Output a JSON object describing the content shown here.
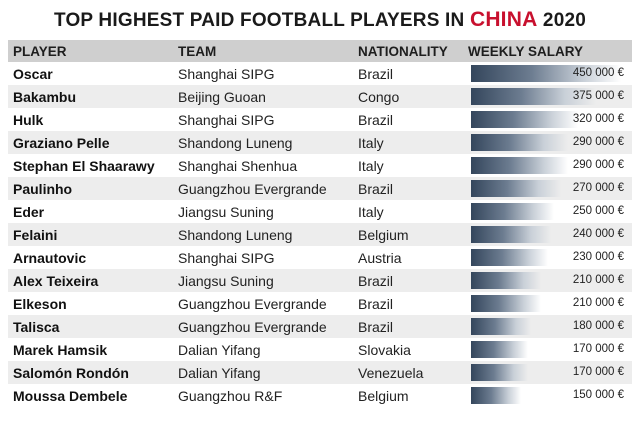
{
  "title": {
    "prefix": "TOP HIGHEST PAID FOOTBALL PLAYERS IN ",
    "accent": "CHINA",
    "suffix": " 2020",
    "accent_color": "#c8102e"
  },
  "headers": {
    "player": "PLAYER",
    "team": "TEAM",
    "nationality": "NATIONALITY",
    "salary": "WEEKLY SALARY"
  },
  "chart_data": {
    "type": "table",
    "title": "TOP HIGHEST PAID FOOTBALL PLAYERS IN CHINA 2020",
    "columns": [
      "PLAYER",
      "TEAM",
      "NATIONALITY",
      "WEEKLY SALARY"
    ],
    "max_value": 450000,
    "rows": [
      {
        "player": "Oscar",
        "team": "Shanghai SIPG",
        "nationality": "Brazil",
        "salary": 450000,
        "salary_label": "450 000 €"
      },
      {
        "player": "Bakambu",
        "team": "Beijing Guoan",
        "nationality": "Congo",
        "salary": 375000,
        "salary_label": "375 000 €"
      },
      {
        "player": "Hulk",
        "team": "Shanghai SIPG",
        "nationality": "Brazil",
        "salary": 320000,
        "salary_label": "320 000 €"
      },
      {
        "player": "Graziano Pelle",
        "team": "Shandong Luneng",
        "nationality": "Italy",
        "salary": 290000,
        "salary_label": "290 000 €"
      },
      {
        "player": "Stephan El Shaarawy",
        "team": "Shanghai Shenhua",
        "nationality": "Italy",
        "salary": 290000,
        "salary_label": "290 000 €"
      },
      {
        "player": "Paulinho",
        "team": "Guangzhou Evergrande",
        "nationality": "Brazil",
        "salary": 270000,
        "salary_label": "270 000 €"
      },
      {
        "player": "Eder",
        "team": "Jiangsu Suning",
        "nationality": "Italy",
        "salary": 250000,
        "salary_label": "250 000 €"
      },
      {
        "player": "Felaini",
        "team": "Shandong Luneng",
        "nationality": "Belgium",
        "salary": 240000,
        "salary_label": "240 000 €"
      },
      {
        "player": "Arnautovic",
        "team": "Shanghai SIPG",
        "nationality": "Austria",
        "salary": 230000,
        "salary_label": "230 000 €"
      },
      {
        "player": "Alex Teixeira",
        "team": "Jiangsu Suning",
        "nationality": "Brazil",
        "salary": 210000,
        "salary_label": "210 000 €"
      },
      {
        "player": "Elkeson",
        "team": "Guangzhou Evergrande",
        "nationality": "Brazil",
        "salary": 210000,
        "salary_label": "210 000 €"
      },
      {
        "player": "Talisca",
        "team": "Guangzhou Evergrande",
        "nationality": "Brazil",
        "salary": 180000,
        "salary_label": "180 000 €"
      },
      {
        "player": "Marek Hamsik",
        "team": "Dalian Yifang",
        "nationality": "Slovakia",
        "salary": 170000,
        "salary_label": "170 000 €"
      },
      {
        "player": "Salomón Rondón",
        "team": "Dalian Yifang",
        "nationality": "Venezuela",
        "salary": 170000,
        "salary_label": "170 000 €"
      },
      {
        "player": "Moussa Dembele",
        "team": "Guangzhou R&F",
        "nationality": "Belgium",
        "salary": 150000,
        "salary_label": "150 000 €"
      }
    ]
  }
}
